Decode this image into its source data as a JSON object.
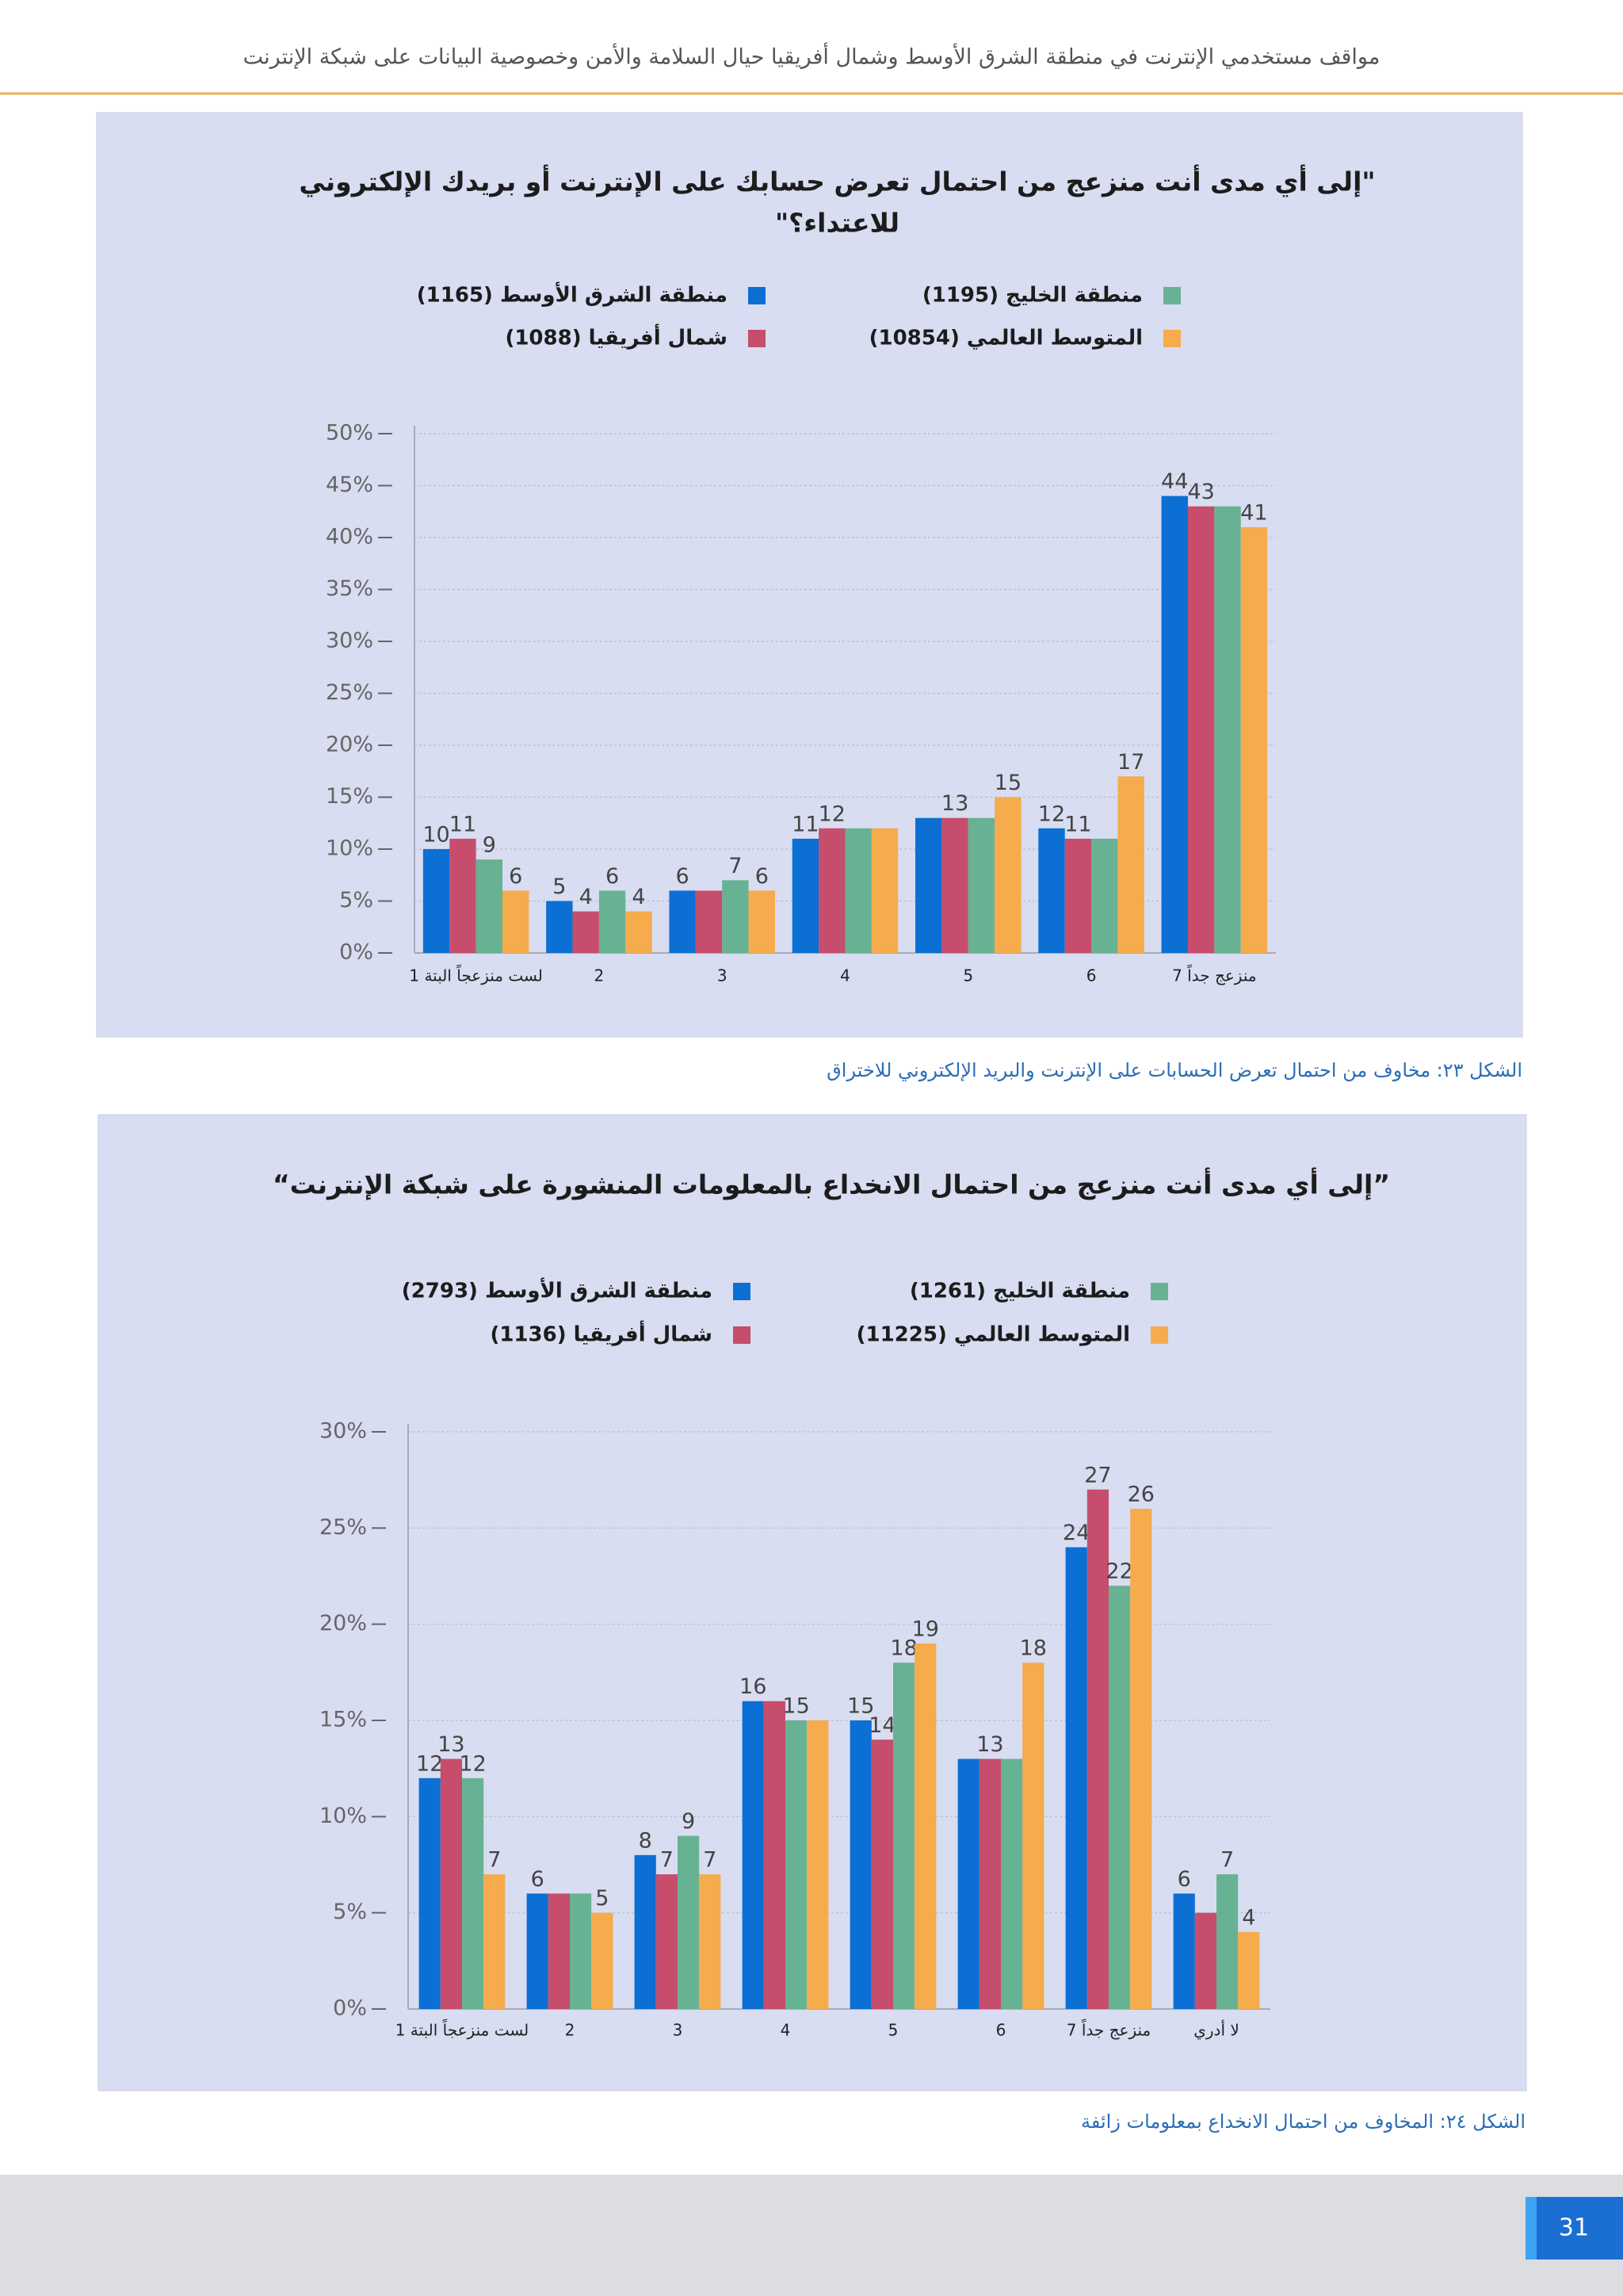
{
  "header": {
    "title": "مواقف مستخدمي الإنترنت في منطقة الشرق الأوسط وشمال أفريقيا حيال السلامة والأمن وخصوصية البيانات على شبكة الإنترنت"
  },
  "chart_data": [
    {
      "type": "bar",
      "title": [
        "\"إلى أي مدى أنت منزعج من احتمال تعرض حسابك على الإنترنت أو بريدك الإلكتروني",
        "للاعتداء؟\""
      ],
      "categories": [
        "لست منزعجاً البتة 1",
        "2",
        "3",
        "4",
        "5",
        "6",
        "منزعج جداً 7"
      ],
      "series": [
        {
          "name": "منطقة الشرق الأوسط (1165)",
          "color": "#0b6fd4",
          "values": [
            10,
            5,
            6,
            11,
            13,
            12,
            44
          ],
          "value_labels": [
            "10",
            "5",
            "6",
            "11",
            null,
            "12",
            "44"
          ]
        },
        {
          "name": "شمال أفريقيا (1088)",
          "color": "#c64d6c",
          "values": [
            11,
            4,
            6,
            12,
            13,
            11,
            43
          ],
          "value_labels": [
            "11",
            "4",
            null,
            "12",
            "13",
            "11",
            "43"
          ]
        },
        {
          "name": "منطقة الخليج (1195)",
          "color": "#68b294",
          "values": [
            9,
            6,
            7,
            12,
            13,
            11,
            43
          ],
          "value_labels": [
            "9",
            "6",
            "7",
            null,
            null,
            null,
            null
          ]
        },
        {
          "name": "المتوسط العالمي (10854)",
          "color": "#f6ab4c",
          "values": [
            6,
            4,
            6,
            12,
            15,
            17,
            41
          ],
          "value_labels": [
            "6",
            "4",
            "6",
            null,
            "15",
            "17",
            "41"
          ]
        }
      ],
      "ylim": [
        0,
        50
      ],
      "yticks": [
        {
          "value": 0,
          "label": "0%"
        },
        {
          "value": 5,
          "label": "5%"
        },
        {
          "value": 10,
          "label": "10%"
        },
        {
          "value": 15,
          "label": "15%"
        },
        {
          "value": 20,
          "label": "20%"
        },
        {
          "value": 25,
          "label": "25%"
        },
        {
          "value": 30,
          "label": "30%"
        },
        {
          "value": 35,
          "label": "35%"
        },
        {
          "value": 40,
          "label": "40%"
        },
        {
          "value": 45,
          "label": "45%"
        },
        {
          "value": 50,
          "label": "50%"
        }
      ],
      "grid": true,
      "caption": "الشكل ٢٣: مخاوف من احتمال تعرض الحسابات على الإنترنت والبريد الإلكتروني للاختراق"
    },
    {
      "type": "bar",
      "title": [
        "”إلى أي مدى أنت منزعج من احتمال الانخداع بالمعلومات المنشورة على شبكة الإنترنت“"
      ],
      "categories": [
        "لست منزعجاً البتة 1",
        "2",
        "3",
        "4",
        "5",
        "6",
        "منزعج جداً 7",
        "لا أدري"
      ],
      "series": [
        {
          "name": "منطقة الشرق الأوسط (2793)",
          "color": "#0b6fd4",
          "values": [
            12,
            6,
            8,
            16,
            15,
            13,
            24,
            6
          ],
          "value_labels": [
            "12",
            "6",
            "8",
            "16",
            "15",
            null,
            "24",
            "6"
          ]
        },
        {
          "name": "شمال أفريقيا (1136)",
          "color": "#c64d6c",
          "values": [
            13,
            6,
            7,
            16,
            14,
            13,
            27,
            5
          ],
          "value_labels": [
            "13",
            null,
            "7",
            null,
            "14",
            "13",
            "27",
            null
          ]
        },
        {
          "name": "منطقة الخليج (1261)",
          "color": "#68b294",
          "values": [
            12,
            6,
            9,
            15,
            18,
            13,
            22,
            7
          ],
          "value_labels": [
            "12",
            null,
            "9",
            "15",
            "18",
            null,
            "22",
            "7"
          ]
        },
        {
          "name": "المتوسط العالمي (11225)",
          "color": "#f6ab4c",
          "values": [
            7,
            5,
            7,
            15,
            19,
            18,
            26,
            4
          ],
          "value_labels": [
            "7",
            "5",
            "7",
            null,
            "19",
            "18",
            "26",
            "4"
          ]
        }
      ],
      "ylim": [
        0,
        30
      ],
      "yticks": [
        {
          "value": 0,
          "label": "0%"
        },
        {
          "value": 5,
          "label": "5%"
        },
        {
          "value": 10,
          "label": "10%"
        },
        {
          "value": 15,
          "label": "15%"
        },
        {
          "value": 20,
          "label": "20%"
        },
        {
          "value": 25,
          "label": "25%"
        },
        {
          "value": 30,
          "label": "30%"
        }
      ],
      "grid": true,
      "caption": "الشكل ٢٤: المخاوف من احتمال الانخداع بمعلومات زائفة"
    }
  ],
  "footer": {
    "page_number": "31"
  }
}
